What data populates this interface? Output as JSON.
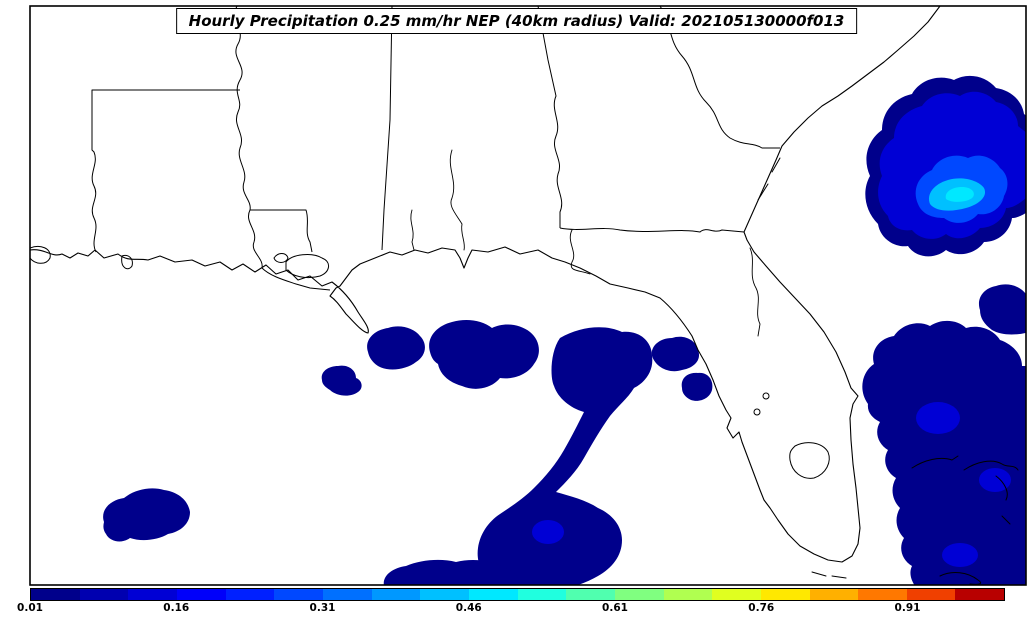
{
  "title": "Hourly Precipitation 0.25 mm/hr NEP (40km radius) Valid: 202105130000f013",
  "chart_data": {
    "type": "heatmap",
    "title": "Hourly Precipitation 0.25 mm/hr NEP (40km radius) Valid: 202105130000f013",
    "variable": "Neighborhood Ensemble Probability of hourly precipitation >= 0.25 mm/hr (40 km radius)",
    "valid_time": "202105130000f013",
    "region": "Southeastern United States, Gulf of Mexico, Florida, western Atlantic and Bahamas",
    "colorbar": {
      "min": 0.01,
      "max": 1.01,
      "bin_width": 0.05,
      "orientation": "horizontal",
      "tick_labels": [
        "0.01",
        "0.16",
        "0.31",
        "0.46",
        "0.61",
        "0.76",
        "0.91"
      ],
      "tick_values": [
        0.01,
        0.16,
        0.31,
        0.46,
        0.61,
        0.76,
        0.91
      ],
      "colors": [
        "#00008b",
        "#0000b0",
        "#0000d5",
        "#0000fa",
        "#0020ff",
        "#0048ff",
        "#0070ff",
        "#0098ff",
        "#00c0ff",
        "#00e8ff",
        "#20ffdf",
        "#50ffaf",
        "#80ff80",
        "#b0ff50",
        "#e0ff20",
        "#ffe800",
        "#ffb000",
        "#ff7800",
        "#f04000",
        "#b80000"
      ]
    },
    "features": [
      {
        "area": "western Atlantic off the Georgia/Carolina coast",
        "probability": "multi-contour maximum, outer 0.01-0.05 rising to light-cyan core near 0.45-0.50"
      },
      {
        "area": "north-central Gulf of Mexico south of the LA/MS/AL/FL-panhandle coast",
        "probability": "cluster of blobs at 0.01-0.05"
      },
      {
        "area": "eastern Gulf arc from the Florida Big Bend curving southwest to the open Gulf",
        "probability": "0.01-0.05 with a small 0.11-0.15 pocket near the southern end"
      },
      {
        "area": "isolated blob in the west-central Gulf",
        "probability": "0.01-0.05"
      },
      {
        "area": "Atlantic east of Florida over and around the Bahamas",
        "probability": "broad 0.01-0.05 area with embedded 0.11-0.15 pockets"
      },
      {
        "area": "blob clipped by the southern map edge, south-central Gulf",
        "probability": "0.01-0.05"
      }
    ],
    "grid": false,
    "legend_position": "bottom colorbar"
  },
  "map": {
    "frame_color": "#000000",
    "land_color": "#ffffff",
    "water_outline_only": true,
    "visible_geography": [
      "Texas coast (edge)",
      "Louisiana",
      "Mississippi",
      "Alabama",
      "Georgia",
      "Florida",
      "South Carolina coast",
      "Lake Pontchartrain",
      "Lake Okeechobee",
      "Bahamas islands"
    ]
  }
}
